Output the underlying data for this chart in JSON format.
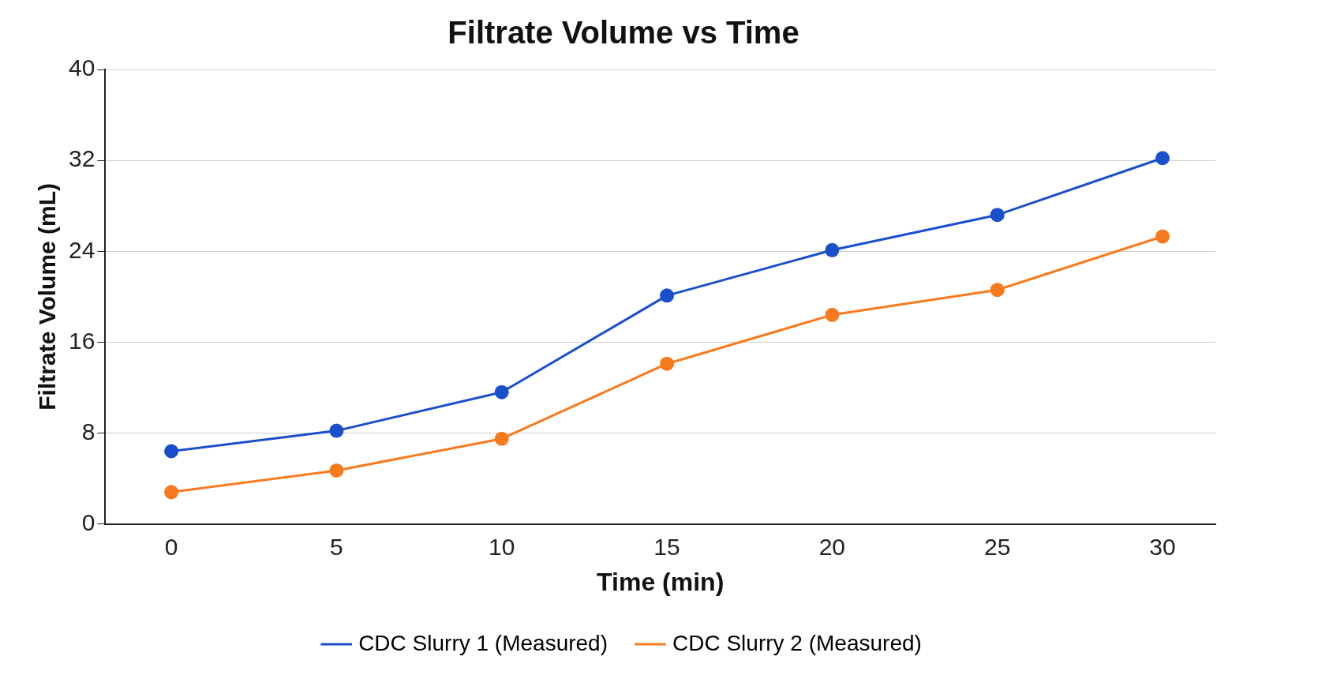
{
  "chart_data": {
    "type": "line",
    "title": "Filtrate Volume vs Time",
    "xlabel": "Time (min)",
    "ylabel": "Filtrate Volume (mL)",
    "x": [
      0,
      5,
      10,
      15,
      20,
      25,
      30
    ],
    "series": [
      {
        "name": "CDC Slurry 1 (Measured)",
        "color": "#1a4fcc",
        "values": [
          6.4,
          8.2,
          11.6,
          20.1,
          24.1,
          27.2,
          32.2
        ]
      },
      {
        "name": "CDC Slurry 2 (Measured)",
        "color": "#f97a1c",
        "values": [
          2.8,
          4.7,
          7.5,
          14.1,
          18.4,
          20.6,
          25.3
        ]
      }
    ],
    "xlim": [
      -2,
      31.6
    ],
    "xticks": [
      0,
      5,
      10,
      15,
      20,
      25,
      30
    ],
    "ylim": [
      0,
      40
    ],
    "yticks": [
      0,
      8,
      16,
      24,
      32,
      40
    ],
    "grid": "y",
    "legend": "bottom",
    "marker": "circle",
    "line_style": "solid"
  }
}
